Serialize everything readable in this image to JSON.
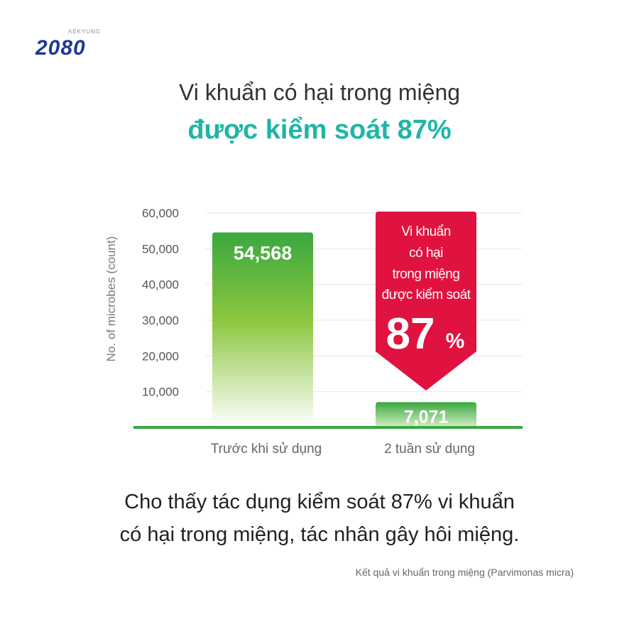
{
  "logo": {
    "brand": "AEKYUNG",
    "product": "2080"
  },
  "headline": {
    "line1": "Vi khuẩn có hại trong miệng",
    "line2": "được kiểm soát 87%"
  },
  "chart_data": {
    "type": "bar",
    "categories": [
      "Trước khi sử dụng",
      "2 tuần sử dụng"
    ],
    "values": [
      54568,
      7071
    ],
    "value_labels": [
      "54,568",
      "7,071"
    ],
    "title": "",
    "xlabel": "",
    "ylabel": "No. of microbes (count)",
    "ylim": [
      0,
      60000
    ],
    "yticks": [
      10000,
      20000,
      30000,
      40000,
      50000,
      60000
    ],
    "ytick_labels": [
      "10,000",
      "20,000",
      "30,000",
      "40,000",
      "50,000",
      "60,000"
    ],
    "grid": true,
    "colors": {
      "bar_top": "#3aa83f",
      "bar_bottom": "#ffffff",
      "baseline": "#3aa83f",
      "callout": "#e0123f"
    },
    "callout": {
      "lines": [
        "Vi khuẩn",
        "có hại",
        "trong miệng",
        "được kiểm soát"
      ],
      "value": "87",
      "unit": "%"
    }
  },
  "body": {
    "line1": "Cho thấy tác dụng kiểm soát 87% vi khuẩn",
    "line2": "có hại trong miệng, tác nhân gây hôi miệng."
  },
  "source": "Kết quả vi khuẩn trong miệng (Parvimonas micra)"
}
